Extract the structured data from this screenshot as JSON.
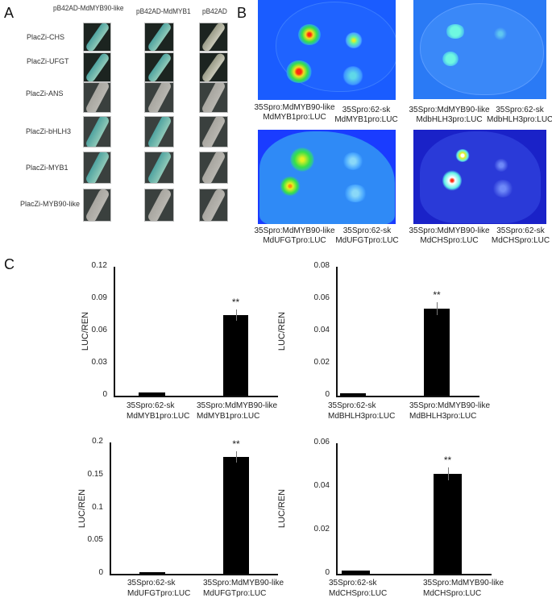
{
  "panels": {
    "A": {
      "letter": "A",
      "column_headers": [
        "pB42AD-MdMYB90-like",
        "pB42AD-MdMYB1",
        "pB42AD"
      ],
      "row_labels": [
        "PlacZi-CHS",
        "PlacZi-UFGT",
        "PlacZi-ANS",
        "PlacZi-bHLH3",
        "PlacZi-MYB1",
        "PlacZi-MYB90-like"
      ],
      "colors": {
        "dark_bg": "#1c2420",
        "blue_green_colony": "#4fa3a0",
        "white_colony": "#b8b6b0",
        "pale_bg": "#3a403e"
      }
    },
    "B": {
      "letter": "B",
      "images": [
        {
          "caption_left": [
            "35Spro:MdMYB90-like",
            "MdMYB1pro:LUC"
          ],
          "caption_right": [
            "35Spro:62-sk",
            "MdMYB1pro:LUC"
          ]
        },
        {
          "caption_left": [
            "35Spro:MdMYB90-like",
            "MdbHLH3pro:LUC"
          ],
          "caption_right": [
            "35Spro:62-sk",
            "MdbHLH3pro:LUC"
          ]
        },
        {
          "caption_left": [
            "35Spro:MdMYB90-like",
            "MdUFGTpro:LUC"
          ],
          "caption_right": [
            "35Spro:62-sk",
            "MdUFGTpro:LUC"
          ]
        },
        {
          "caption_left": [
            "35Spro:MdMYB90-like",
            "MdCHSpro:LUC"
          ],
          "caption_right": [
            "35Spro:62-sk",
            "MdCHSpro:LUC"
          ]
        }
      ],
      "colors": {
        "bg_blue": "#1a5cff",
        "bg_blue_pale": "#2a7af5",
        "bg_navy": "#1a22c8",
        "signal_green": "#36e04a",
        "signal_red": "#ff2a10",
        "signal_yellow": "#e8f020",
        "signal_cyan": "#5ff0e8"
      }
    },
    "C": {
      "letter": "C"
    }
  },
  "chart_data": [
    {
      "type": "bar",
      "title": "",
      "xlabel": "",
      "ylabel": "LUC/REN",
      "ylim": [
        0,
        0.12
      ],
      "yticks": [
        "0",
        "0.03",
        "0.06",
        "0.09",
        "0.12"
      ],
      "categories": [
        [
          "35Spro:62-sk",
          "MdMYB1pro:LUC"
        ],
        [
          "35Spro:MdMYB90-like",
          "MdMYB1pro:LUC"
        ]
      ],
      "values": [
        0.003,
        0.075
      ],
      "errors": [
        0.0,
        0.005
      ],
      "annotations": [
        "",
        "**"
      ],
      "grid": false
    },
    {
      "type": "bar",
      "title": "",
      "xlabel": "",
      "ylabel": "LUC/REN",
      "ylim": [
        0,
        0.08
      ],
      "yticks": [
        "0",
        "0.02",
        "0.04",
        "0.06",
        "0.08"
      ],
      "categories": [
        [
          "35Spro:62-sk",
          "MdBHLH3pro:LUC"
        ],
        [
          "35Spro:MdMYB90-like",
          "MdBHLH3pro:LUC"
        ]
      ],
      "values": [
        0.0015,
        0.054
      ],
      "errors": [
        0.0,
        0.004
      ],
      "annotations": [
        "",
        "**"
      ],
      "grid": false
    },
    {
      "type": "bar",
      "title": "",
      "xlabel": "",
      "ylabel": "LUC/REN",
      "ylim": [
        0,
        0.2
      ],
      "yticks": [
        "0",
        "0.05",
        "0.1",
        "0.15",
        "0.2"
      ],
      "categories": [
        [
          "35Spro:62-sk",
          "MdUFGTpro:LUC"
        ],
        [
          "35Spro:MdMYB90-like",
          "MdUFGTpro:LUC"
        ]
      ],
      "values": [
        0.002,
        0.178
      ],
      "errors": [
        0.0,
        0.009
      ],
      "annotations": [
        "",
        "**"
      ],
      "grid": false
    },
    {
      "type": "bar",
      "title": "",
      "xlabel": "",
      "ylabel": "LUC/REN",
      "ylim": [
        0,
        0.06
      ],
      "yticks": [
        "0",
        "0.02",
        "0.04",
        "0.06"
      ],
      "categories": [
        [
          "35Spro:62-sk",
          "MdCHSpro:LUC"
        ],
        [
          "35Spro:MdMYB90-like",
          "MdCHSpro:LUC"
        ]
      ],
      "values": [
        0.0015,
        0.046
      ],
      "errors": [
        0.0,
        0.003
      ],
      "annotations": [
        "",
        "**"
      ],
      "grid": false
    }
  ]
}
